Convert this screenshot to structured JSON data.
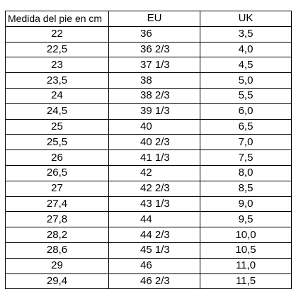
{
  "table": {
    "headers": {
      "cm": "Medida del pie en cm",
      "eu": "EU",
      "uk": "UK"
    },
    "rows": [
      {
        "cm": "22",
        "eu": "36",
        "uk": "3,5"
      },
      {
        "cm": "22,5",
        "eu": "36 2/3",
        "uk": "4,0"
      },
      {
        "cm": "23",
        "eu": "37 1/3",
        "uk": "4,5"
      },
      {
        "cm": "23,5",
        "eu": "38",
        "uk": "5,0"
      },
      {
        "cm": "24",
        "eu": "38 2/3",
        "uk": "5,5"
      },
      {
        "cm": "24,5",
        "eu": "39 1/3",
        "uk": "6,0"
      },
      {
        "cm": "25",
        "eu": "40",
        "uk": "6,5"
      },
      {
        "cm": "25,5",
        "eu": "40 2/3",
        "uk": "7,0"
      },
      {
        "cm": "26",
        "eu": "41 1/3",
        "uk": "7,5"
      },
      {
        "cm": "26,5",
        "eu": "42",
        "uk": "8,0"
      },
      {
        "cm": "27",
        "eu": "42 2/3",
        "uk": "8,5"
      },
      {
        "cm": "27,4",
        "eu": "43 1/3",
        "uk": "9,0"
      },
      {
        "cm": "27,8",
        "eu": "44",
        "uk": "9,5"
      },
      {
        "cm": "28,2",
        "eu": "44 2/3",
        "uk": "10,0"
      },
      {
        "cm": "28,6",
        "eu": "45 1/3",
        "uk": "10,5"
      },
      {
        "cm": "29",
        "eu": "46",
        "uk": "11,0"
      },
      {
        "cm": "29,4",
        "eu": "46 2/3",
        "uk": "11,5"
      }
    ]
  }
}
